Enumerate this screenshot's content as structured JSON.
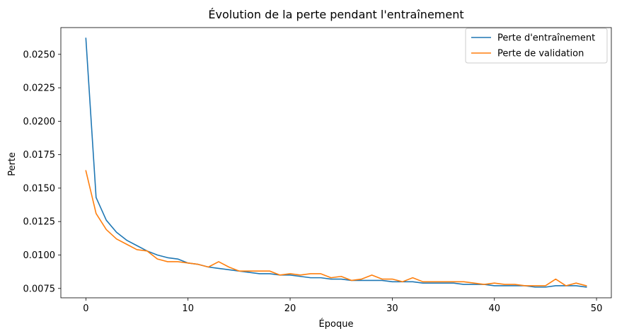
{
  "chart_data": {
    "type": "line",
    "title": "Évolution de la perte pendant l'entraînement",
    "xlabel": "Époque",
    "ylabel": "Perte",
    "xlim": [
      -2.45,
      51.45
    ],
    "ylim": [
      0.0068,
      0.027
    ],
    "xticks": [
      0,
      10,
      20,
      30,
      40,
      50
    ],
    "xtick_labels": [
      "0",
      "10",
      "20",
      "30",
      "40",
      "50"
    ],
    "yticks": [
      0.0075,
      0.01,
      0.0125,
      0.015,
      0.0175,
      0.02,
      0.0225,
      0.025
    ],
    "ytick_labels": [
      "0.0075",
      "0.0100",
      "0.0125",
      "0.0150",
      "0.0175",
      "0.0200",
      "0.0225",
      "0.0250"
    ],
    "grid": false,
    "legend_position": "top-right",
    "x": [
      0,
      1,
      2,
      3,
      4,
      5,
      6,
      7,
      8,
      9,
      10,
      11,
      12,
      13,
      14,
      15,
      16,
      17,
      18,
      19,
      20,
      21,
      22,
      23,
      24,
      25,
      26,
      27,
      28,
      29,
      30,
      31,
      32,
      33,
      34,
      35,
      36,
      37,
      38,
      39,
      40,
      41,
      42,
      43,
      44,
      45,
      46,
      47,
      48,
      49
    ],
    "series": [
      {
        "name": "Perte d'entraînement",
        "color": "#1f77b4",
        "values": [
          0.0262,
          0.0143,
          0.0126,
          0.0117,
          0.0111,
          0.0107,
          0.0103,
          0.01,
          0.0098,
          0.0097,
          0.0094,
          0.0093,
          0.0091,
          0.009,
          0.0089,
          0.0088,
          0.0087,
          0.0086,
          0.0086,
          0.0085,
          0.0085,
          0.0084,
          0.0083,
          0.0083,
          0.0082,
          0.0082,
          0.0081,
          0.0081,
          0.0081,
          0.0081,
          0.008,
          0.008,
          0.008,
          0.0079,
          0.0079,
          0.0079,
          0.0079,
          0.0078,
          0.0078,
          0.0078,
          0.0077,
          0.0077,
          0.0077,
          0.0077,
          0.0076,
          0.0076,
          0.0077,
          0.0077,
          0.0077,
          0.0076
        ]
      },
      {
        "name": "Perte de validation",
        "color": "#ff7f0e",
        "values": [
          0.0163,
          0.0131,
          0.0119,
          0.0112,
          0.0108,
          0.0104,
          0.0103,
          0.0097,
          0.0095,
          0.0095,
          0.0094,
          0.0093,
          0.0091,
          0.0095,
          0.0091,
          0.0088,
          0.0088,
          0.0088,
          0.0088,
          0.0085,
          0.0086,
          0.0085,
          0.0086,
          0.0086,
          0.0083,
          0.0084,
          0.0081,
          0.0082,
          0.0085,
          0.0082,
          0.0082,
          0.008,
          0.0083,
          0.008,
          0.008,
          0.008,
          0.008,
          0.008,
          0.0079,
          0.0078,
          0.0079,
          0.0078,
          0.0078,
          0.0077,
          0.0077,
          0.0077,
          0.0082,
          0.0077,
          0.0079,
          0.0077
        ]
      }
    ]
  }
}
